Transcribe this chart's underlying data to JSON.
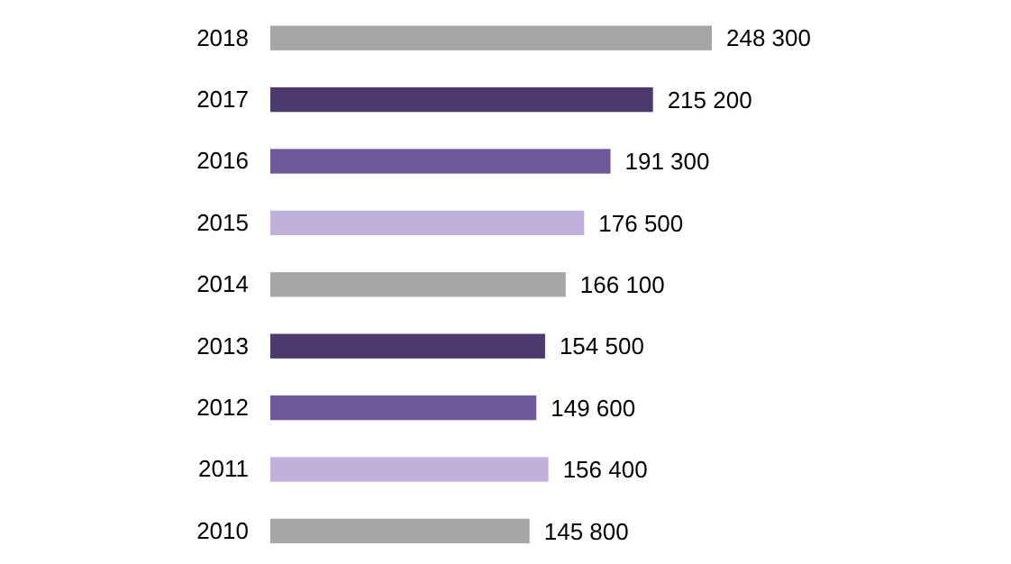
{
  "chart_data": {
    "type": "bar",
    "orientation": "horizontal",
    "categories": [
      "2018",
      "2017",
      "2016",
      "2015",
      "2014",
      "2013",
      "2012",
      "2011",
      "2010"
    ],
    "values": [
      248300,
      215200,
      191300,
      176500,
      166100,
      154500,
      149600,
      156400,
      145800
    ],
    "colors": [
      "#a6a6a6",
      "#4b3a6b",
      "#6e5a9a",
      "#c0b0dc",
      "#a6a6a6",
      "#4b3a6b",
      "#6e5a9a",
      "#c0b0dc",
      "#a6a6a6"
    ],
    "value_labels": [
      "248 300",
      "215 200",
      "191 300",
      "176 500",
      "166 100",
      "154 500",
      "149 600",
      "156 400",
      "145 800"
    ]
  }
}
